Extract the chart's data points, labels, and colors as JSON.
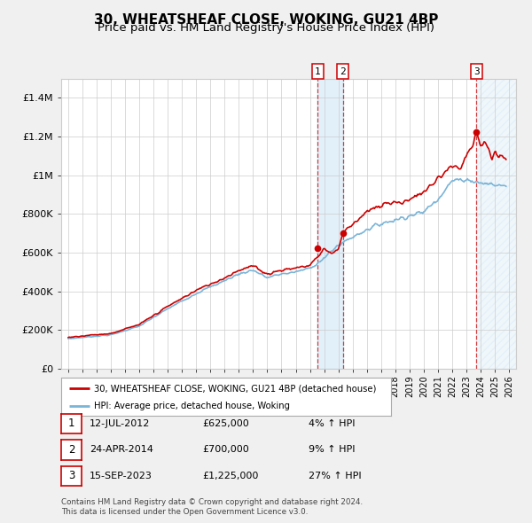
{
  "title": "30, WHEATSHEAF CLOSE, WOKING, GU21 4BP",
  "subtitle": "Price paid vs. HM Land Registry's House Price Index (HPI)",
  "title_fontsize": 11,
  "subtitle_fontsize": 9.5,
  "hpi_color": "#7ab4d8",
  "price_color": "#cc0000",
  "background_color": "#f0f0f0",
  "plot_bg_color": "#ffffff",
  "grid_color": "#cccccc",
  "ylim": [
    0,
    1500000
  ],
  "xlim_start": 1994.5,
  "xlim_end": 2026.5,
  "sale_dates": [
    2012.53,
    2014.31,
    2023.71
  ],
  "sale_prices": [
    625000,
    700000,
    1225000
  ],
  "sale_labels": [
    "1",
    "2",
    "3"
  ],
  "shaded_region_start": 2012.53,
  "shaded_region_end": 2014.31,
  "hatch_region_start": 2023.71,
  "hatch_region_end": 2026.5,
  "legend_price_label": "30, WHEATSHEAF CLOSE, WOKING, GU21 4BP (detached house)",
  "legend_hpi_label": "HPI: Average price, detached house, Woking",
  "table_rows": [
    [
      "1",
      "12-JUL-2012",
      "£625,000",
      "4% ↑ HPI"
    ],
    [
      "2",
      "24-APR-2014",
      "£700,000",
      "9% ↑ HPI"
    ],
    [
      "3",
      "15-SEP-2023",
      "£1,225,000",
      "27% ↑ HPI"
    ]
  ],
  "footnote": "Contains HM Land Registry data © Crown copyright and database right 2024.\nThis data is licensed under the Open Government Licence v3.0.",
  "yticks": [
    0,
    200000,
    400000,
    600000,
    800000,
    1000000,
    1200000,
    1400000
  ],
  "ytick_labels": [
    "£0",
    "£200K",
    "£400K",
    "£600K",
    "£800K",
    "£1M",
    "£1.2M",
    "£1.4M"
  ]
}
